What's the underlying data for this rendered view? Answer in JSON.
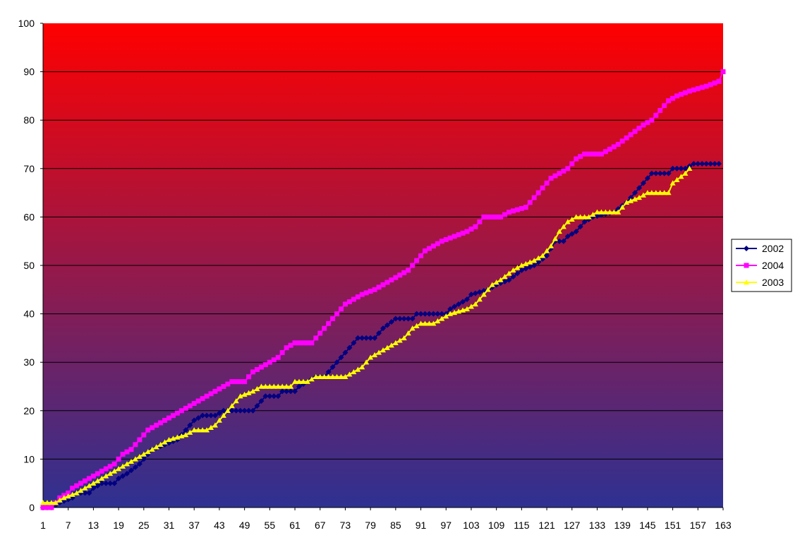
{
  "chart_data": {
    "type": "line",
    "title": "",
    "xlabel": "",
    "ylabel": "",
    "xlim": [
      1,
      163
    ],
    "ylim": [
      0,
      100
    ],
    "y_ticks": [
      "0",
      "10",
      "20",
      "30",
      "40",
      "50",
      "60",
      "70",
      "80",
      "90",
      "100"
    ],
    "x_ticks": [
      "1",
      "7",
      "13",
      "19",
      "25",
      "31",
      "37",
      "43",
      "49",
      "55",
      "61",
      "67",
      "73",
      "79",
      "85",
      "91",
      "97",
      "103",
      "109",
      "115",
      "121",
      "127",
      "133",
      "139",
      "145",
      "151",
      "157",
      "163"
    ],
    "grid": true,
    "legend_position": "right",
    "background_gradient": {
      "top": "#ff0000",
      "bottom": "#2e3192"
    },
    "series": [
      {
        "name": "2002",
        "color": "#000080",
        "marker": "diamond",
        "points": [
          [
            1,
            0
          ],
          [
            3,
            0
          ],
          [
            5,
            1
          ],
          [
            8,
            2
          ],
          [
            9,
            3
          ],
          [
            12,
            3
          ],
          [
            13,
            4
          ],
          [
            15,
            5
          ],
          [
            18,
            5
          ],
          [
            19,
            6
          ],
          [
            21,
            7
          ],
          [
            24,
            9
          ],
          [
            26,
            11
          ],
          [
            27,
            12
          ],
          [
            30,
            13
          ],
          [
            33,
            14
          ],
          [
            35,
            16
          ],
          [
            37,
            18
          ],
          [
            39,
            19
          ],
          [
            42,
            19
          ],
          [
            44,
            20
          ],
          [
            51,
            20
          ],
          [
            53,
            22
          ],
          [
            54,
            23
          ],
          [
            57,
            23
          ],
          [
            58,
            24
          ],
          [
            61,
            24
          ],
          [
            62,
            25
          ],
          [
            66,
            27
          ],
          [
            68,
            27
          ],
          [
            70,
            29
          ],
          [
            72,
            31
          ],
          [
            74,
            33
          ],
          [
            76,
            35
          ],
          [
            80,
            35
          ],
          [
            82,
            37
          ],
          [
            85,
            39
          ],
          [
            89,
            39
          ],
          [
            90,
            40
          ],
          [
            97,
            40
          ],
          [
            98,
            41
          ],
          [
            100,
            42
          ],
          [
            102,
            43
          ],
          [
            103,
            44
          ],
          [
            107,
            45
          ],
          [
            109,
            46
          ],
          [
            112,
            47
          ],
          [
            115,
            49
          ],
          [
            118,
            50
          ],
          [
            121,
            52
          ],
          [
            123,
            55
          ],
          [
            125,
            55
          ],
          [
            126,
            56
          ],
          [
            128,
            57
          ],
          [
            130,
            59
          ],
          [
            132,
            60
          ],
          [
            137,
            61
          ],
          [
            140,
            63
          ],
          [
            142,
            65
          ],
          [
            144,
            67
          ],
          [
            146,
            69
          ],
          [
            150,
            69
          ],
          [
            151,
            70
          ],
          [
            154,
            70
          ],
          [
            156,
            71
          ],
          [
            162,
            71
          ]
        ]
      },
      {
        "name": "2004",
        "color": "#ff00ff",
        "marker": "square",
        "points": [
          [
            1,
            0
          ],
          [
            3,
            0
          ],
          [
            5,
            2
          ],
          [
            7,
            3
          ],
          [
            8,
            4
          ],
          [
            10,
            5
          ],
          [
            12,
            6
          ],
          [
            14,
            7
          ],
          [
            16,
            8
          ],
          [
            18,
            9
          ],
          [
            20,
            11
          ],
          [
            22,
            12
          ],
          [
            24,
            14
          ],
          [
            26,
            16
          ],
          [
            28,
            17
          ],
          [
            30,
            18
          ],
          [
            32,
            19
          ],
          [
            34,
            20
          ],
          [
            36,
            21
          ],
          [
            38,
            22
          ],
          [
            42,
            24
          ],
          [
            44,
            25
          ],
          [
            46,
            26
          ],
          [
            49,
            26
          ],
          [
            51,
            28
          ],
          [
            53,
            29
          ],
          [
            55,
            30
          ],
          [
            57,
            31
          ],
          [
            59,
            33
          ],
          [
            61,
            34
          ],
          [
            65,
            34
          ],
          [
            67,
            36
          ],
          [
            69,
            38
          ],
          [
            71,
            40
          ],
          [
            73,
            42
          ],
          [
            75,
            43
          ],
          [
            77,
            44
          ],
          [
            80,
            45
          ],
          [
            82,
            46
          ],
          [
            84,
            47
          ],
          [
            86,
            48
          ],
          [
            88,
            49
          ],
          [
            90,
            51
          ],
          [
            92,
            53
          ],
          [
            94,
            54
          ],
          [
            96,
            55
          ],
          [
            99,
            56
          ],
          [
            102,
            57
          ],
          [
            104,
            58
          ],
          [
            106,
            60
          ],
          [
            110,
            60
          ],
          [
            112,
            61
          ],
          [
            116,
            62
          ],
          [
            118,
            64
          ],
          [
            120,
            66
          ],
          [
            122,
            68
          ],
          [
            124,
            69
          ],
          [
            126,
            70
          ],
          [
            128,
            72
          ],
          [
            130,
            73
          ],
          [
            134,
            73
          ],
          [
            136,
            74
          ],
          [
            138,
            75
          ],
          [
            141,
            77
          ],
          [
            144,
            79
          ],
          [
            146,
            80
          ],
          [
            148,
            82
          ],
          [
            150,
            84
          ],
          [
            152,
            85
          ],
          [
            155,
            86
          ],
          [
            159,
            87
          ],
          [
            162,
            88
          ],
          [
            163,
            90
          ]
        ]
      },
      {
        "name": "2003",
        "color": "#ffff00",
        "marker": "triangle",
        "points": [
          [
            1,
            1
          ],
          [
            4,
            1
          ],
          [
            6,
            2
          ],
          [
            9,
            3
          ],
          [
            11,
            4
          ],
          [
            13,
            5
          ],
          [
            15,
            6
          ],
          [
            17,
            7
          ],
          [
            19,
            8
          ],
          [
            21,
            9
          ],
          [
            23,
            10
          ],
          [
            25,
            11
          ],
          [
            27,
            12
          ],
          [
            29,
            13
          ],
          [
            31,
            14
          ],
          [
            35,
            15
          ],
          [
            37,
            16
          ],
          [
            40,
            16
          ],
          [
            42,
            17
          ],
          [
            44,
            19
          ],
          [
            46,
            21
          ],
          [
            48,
            23
          ],
          [
            51,
            24
          ],
          [
            53,
            25
          ],
          [
            60,
            25
          ],
          [
            61,
            26
          ],
          [
            64,
            26
          ],
          [
            66,
            27
          ],
          [
            73,
            27
          ],
          [
            75,
            28
          ],
          [
            77,
            29
          ],
          [
            79,
            31
          ],
          [
            81,
            32
          ],
          [
            83,
            33
          ],
          [
            85,
            34
          ],
          [
            87,
            35
          ],
          [
            89,
            37
          ],
          [
            91,
            38
          ],
          [
            94,
            38
          ],
          [
            96,
            39
          ],
          [
            98,
            40
          ],
          [
            102,
            41
          ],
          [
            104,
            42
          ],
          [
            106,
            44
          ],
          [
            108,
            46
          ],
          [
            110,
            47
          ],
          [
            113,
            49
          ],
          [
            115,
            50
          ],
          [
            118,
            51
          ],
          [
            120,
            52
          ],
          [
            122,
            54
          ],
          [
            124,
            57
          ],
          [
            126,
            59
          ],
          [
            128,
            60
          ],
          [
            131,
            60
          ],
          [
            133,
            61
          ],
          [
            138,
            61
          ],
          [
            140,
            63
          ],
          [
            143,
            64
          ],
          [
            145,
            65
          ],
          [
            150,
            65
          ],
          [
            151,
            67
          ],
          [
            154,
            69
          ],
          [
            155,
            70
          ]
        ]
      }
    ]
  }
}
